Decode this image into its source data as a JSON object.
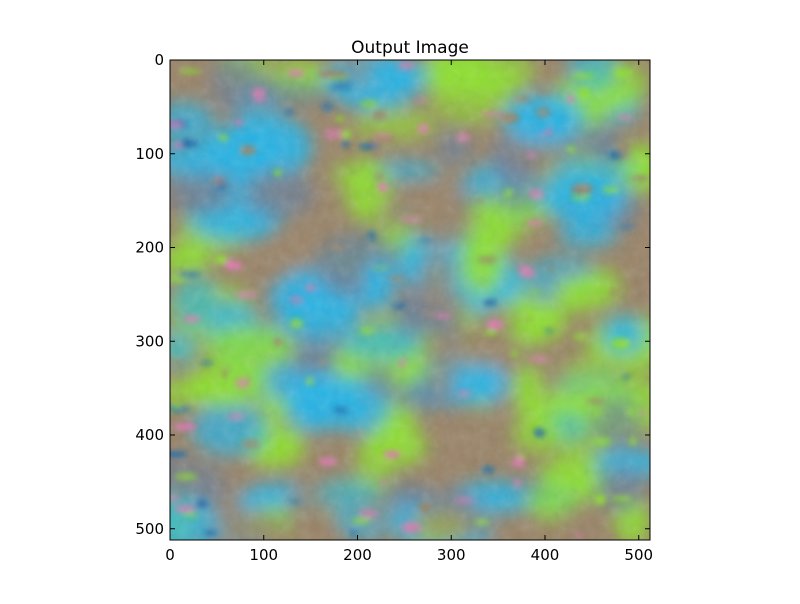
{
  "chart_data": {
    "type": "heatmap",
    "title": "Output Image",
    "xlabel": "",
    "ylabel": "",
    "xlim": [
      0,
      512
    ],
    "ylim": [
      512,
      0
    ],
    "x_ticks": [
      0,
      100,
      200,
      300,
      400,
      500
    ],
    "y_ticks": [
      0,
      100,
      200,
      300,
      400,
      500
    ],
    "grid": false,
    "colors": {
      "sky_blue": "#27b4e6",
      "lime_green": "#8ee02e",
      "earth_brown": "#9a8468",
      "slate_gray": "#6a7f99",
      "pink_flowers": "#e07ab4",
      "deep_blue": "#1466a8"
    }
  }
}
